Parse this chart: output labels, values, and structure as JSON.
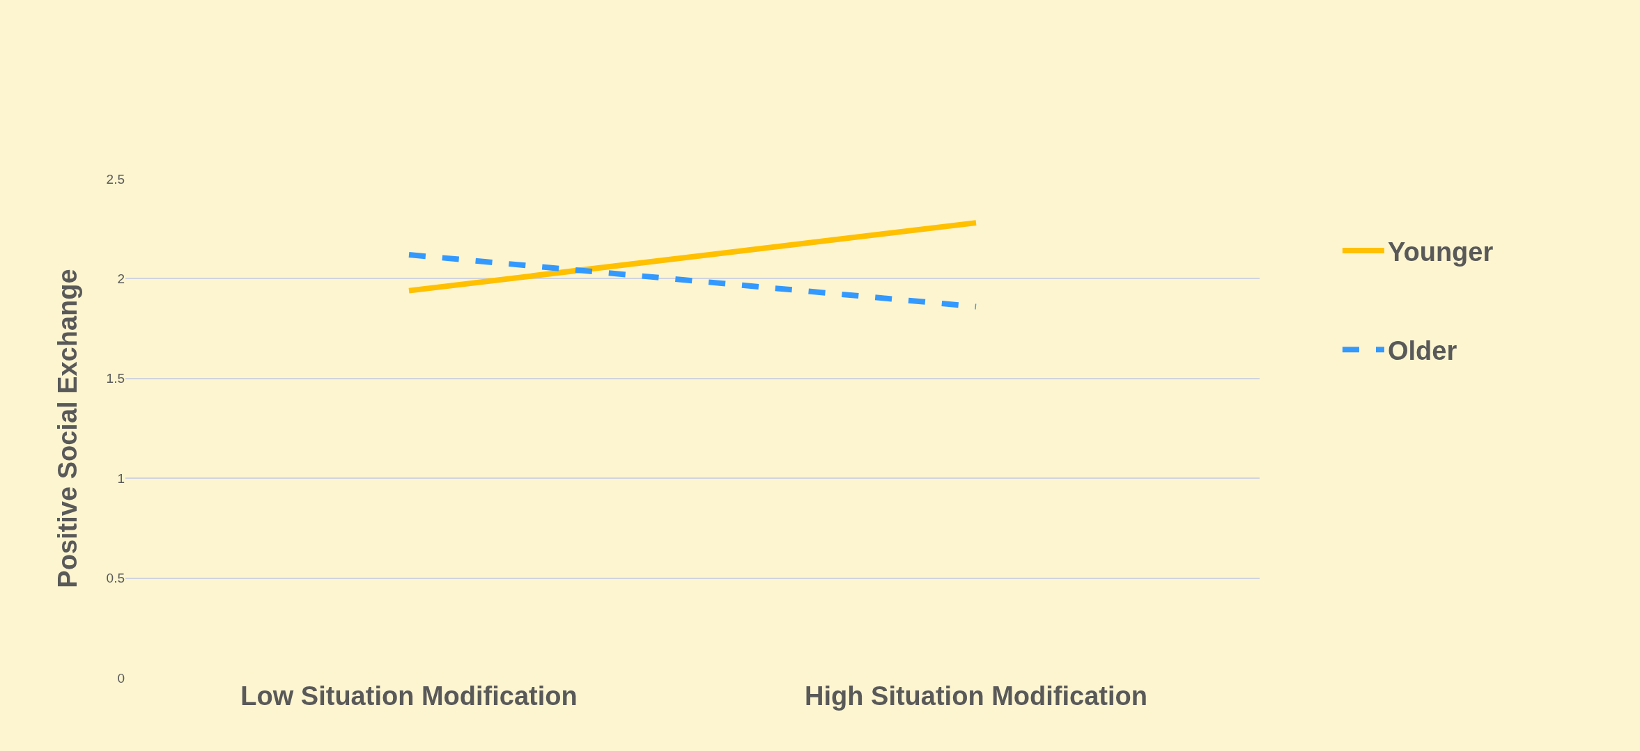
{
  "chart_data": {
    "type": "line",
    "ylabel": "Positive Social Exchange",
    "categories": [
      "Low Situation Modification",
      "High Situation Modification"
    ],
    "series": [
      {
        "name": "Younger",
        "color": "#ffc000",
        "values": [
          1.94,
          2.28
        ],
        "line_style": "solid"
      },
      {
        "name": "Older",
        "color": "#3399ff",
        "values": [
          2.12,
          1.86
        ],
        "line_style": "dashed"
      }
    ],
    "ylim": [
      0,
      2.5
    ],
    "yticks": [
      0,
      0.5,
      1,
      1.5,
      2,
      2.5
    ],
    "grid": "y",
    "legend": "right",
    "marker": "none"
  }
}
